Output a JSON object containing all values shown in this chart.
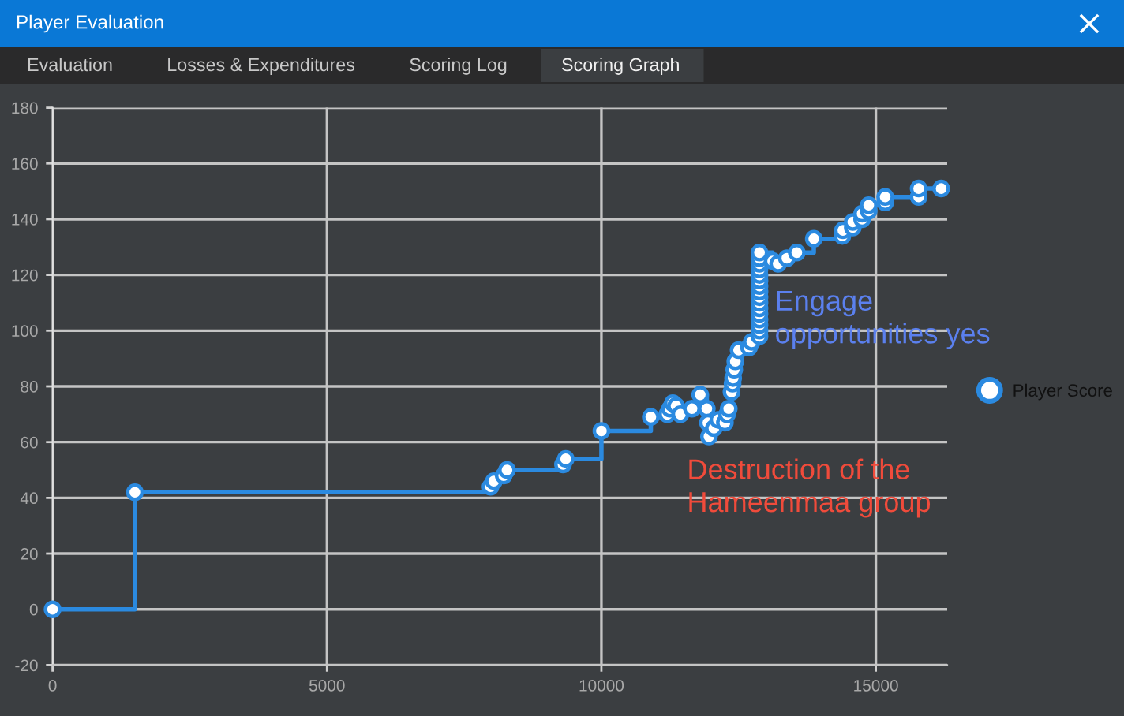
{
  "chart_data": {
    "type": "step",
    "title": "Player Evaluation",
    "annotations": [
      "Evaluation",
      "Losses & Expenditures",
      "Scoring Log",
      "Scoring Graph",
      {
        "text": "Engage\nopportunities yes",
        "x": 12880,
        "y": 104
      },
      {
        "text": "Destruction of the\nHameenmaa group",
        "x": 11960,
        "y": 62
      }
    ],
    "series": [
      {
        "name": "Player Score",
        "color": "#2b8ae0",
        "x": [
          0,
          1500,
          7980,
          8040,
          8220,
          8280,
          9300,
          9350,
          10000,
          10900,
          11200,
          11250,
          11300,
          11360,
          11440,
          11650,
          11800,
          11920,
          11940,
          11960,
          12050,
          12130,
          12250,
          12290,
          12320,
          12370,
          12390,
          12400,
          12420,
          12440,
          12500,
          12690,
          12740,
          12880,
          12880,
          12880,
          12880,
          12880,
          12880,
          12880,
          12880,
          12880,
          12880,
          12880,
          12880,
          12880,
          12880,
          12880,
          12880,
          13120,
          13220,
          13380,
          13560,
          13870,
          14390,
          14400,
          14580,
          14580,
          14750,
          14750,
          14870,
          14870,
          15170,
          15170,
          15780,
          15780,
          16190
        ],
        "values": [
          0,
          42,
          44,
          46,
          48,
          50,
          52,
          54,
          64,
          69,
          70,
          72,
          74,
          73,
          70,
          72,
          77,
          72,
          67,
          62,
          65,
          68,
          67,
          70,
          72,
          78,
          81,
          83,
          86,
          89,
          93,
          94,
          96,
          98,
          100,
          102,
          104,
          106,
          108,
          110,
          112,
          114,
          116,
          118,
          120,
          122,
          124,
          126,
          128,
          125,
          124,
          126,
          128,
          133,
          134,
          136,
          137,
          139,
          140,
          142,
          143,
          145,
          146,
          148,
          148,
          151,
          151
        ]
      }
    ],
    "xlim": [
      0,
      16300
    ],
    "ylim": [
      -20,
      180
    ],
    "xticks": [
      0,
      5000,
      10000,
      15000
    ],
    "yticks": [
      -20,
      0,
      20,
      40,
      60,
      80,
      100,
      120,
      140,
      160,
      180
    ],
    "grid": true,
    "legend": "right",
    "marker": "circle"
  }
}
